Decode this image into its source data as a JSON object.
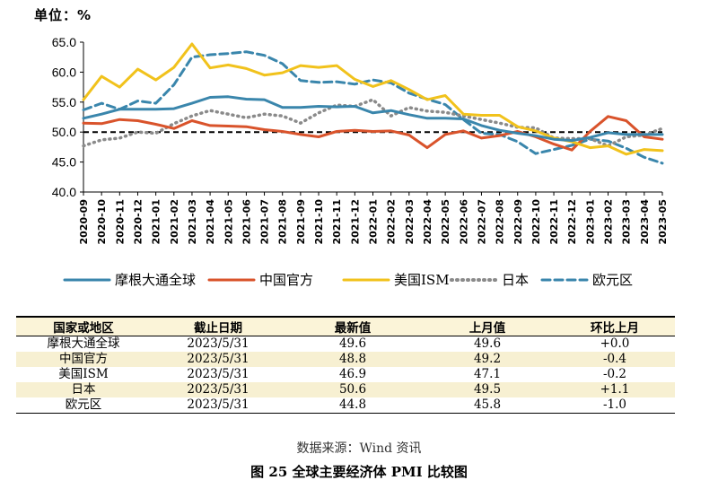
{
  "unit_label": "单位：%",
  "chart_data": {
    "type": "line",
    "x": [
      "2020-09",
      "2020-10",
      "2020-11",
      "2020-12",
      "2021-01",
      "2021-02",
      "2021-03",
      "2021-04",
      "2021-05",
      "2021-06",
      "2021-07",
      "2021-08",
      "2021-09",
      "2021-10",
      "2021-11",
      "2021-12",
      "2022-01",
      "2022-02",
      "2022-03",
      "2022-04",
      "2022-05",
      "2022-06",
      "2022-07",
      "2022-08",
      "2022-09",
      "2022-10",
      "2022-11",
      "2022-12",
      "2023-01",
      "2023-02",
      "2023-03",
      "2023-04",
      "2023-05"
    ],
    "ylim": [
      40,
      65
    ],
    "yticks": [
      "40.0",
      "45.0",
      "50.0",
      "55.0",
      "60.0",
      "65.0"
    ],
    "reference_line": 50,
    "series": [
      {
        "name": "摩根大通全球",
        "color": "#3a86ac",
        "dash": "solid",
        "values": [
          52.3,
          53.0,
          53.8,
          53.8,
          53.8,
          53.9,
          54.8,
          55.8,
          55.9,
          55.5,
          55.4,
          54.1,
          54.1,
          54.3,
          54.2,
          54.3,
          53.2,
          53.6,
          52.9,
          52.3,
          52.3,
          52.2,
          51.1,
          50.3,
          49.8,
          49.4,
          48.8,
          48.6,
          49.1,
          49.9,
          49.6,
          49.6,
          49.6
        ]
      },
      {
        "name": "中国官方",
        "color": "#d9532b",
        "dash": "solid",
        "values": [
          51.5,
          51.4,
          52.1,
          51.9,
          51.3,
          50.6,
          51.9,
          51.1,
          51.0,
          50.9,
          50.4,
          50.1,
          49.6,
          49.2,
          50.1,
          50.3,
          50.1,
          50.2,
          49.5,
          47.4,
          49.6,
          50.2,
          49.0,
          49.4,
          50.1,
          49.2,
          48.0,
          47.0,
          50.1,
          52.6,
          51.9,
          49.2,
          48.8
        ]
      },
      {
        "name": "美国ISM",
        "color": "#f1c21c",
        "dash": "solid",
        "values": [
          55.4,
          59.3,
          57.5,
          60.5,
          58.7,
          60.8,
          64.7,
          60.7,
          61.2,
          60.6,
          59.5,
          59.9,
          61.1,
          60.8,
          61.1,
          58.8,
          57.6,
          58.6,
          57.1,
          55.4,
          56.1,
          53.0,
          52.8,
          52.8,
          50.9,
          50.2,
          49.0,
          48.4,
          47.4,
          47.7,
          46.3,
          47.1,
          46.9
        ]
      },
      {
        "name": "日本",
        "color": "#8a8a8a",
        "dash": "dotted",
        "values": [
          47.7,
          48.7,
          49.0,
          50.0,
          49.8,
          51.4,
          52.7,
          53.6,
          53.0,
          52.4,
          53.0,
          52.7,
          51.5,
          53.2,
          54.5,
          54.3,
          55.4,
          52.7,
          54.1,
          53.5,
          53.3,
          52.7,
          52.1,
          51.5,
          50.8,
          50.7,
          49.0,
          48.9,
          48.9,
          47.7,
          49.2,
          49.5,
          50.6
        ]
      },
      {
        "name": "欧元区",
        "color": "#3a86ac",
        "dash": "dashed",
        "values": [
          53.7,
          54.8,
          53.8,
          55.2,
          54.8,
          57.9,
          62.5,
          62.9,
          63.1,
          63.4,
          62.8,
          61.4,
          58.6,
          58.3,
          58.4,
          58.0,
          58.7,
          58.2,
          56.5,
          55.5,
          54.6,
          52.1,
          49.8,
          49.6,
          48.4,
          46.4,
          47.1,
          47.8,
          48.8,
          48.5,
          47.3,
          45.8,
          44.8
        ]
      }
    ]
  },
  "table": {
    "headers": [
      "国家或地区",
      "截止日期",
      "最新值",
      "上月值",
      "环比上月"
    ],
    "rows": [
      [
        "摩根大通全球",
        "2023/5/31",
        "49.6",
        "49.6",
        "+0.0"
      ],
      [
        "中国官方",
        "2023/5/31",
        "48.8",
        "49.2",
        "-0.4"
      ],
      [
        "美国ISM",
        "2023/5/31",
        "46.9",
        "47.1",
        "-0.2"
      ],
      [
        "日本",
        "2023/5/31",
        "50.6",
        "49.5",
        "+1.1"
      ],
      [
        "欧元区",
        "2023/5/31",
        "44.8",
        "45.8",
        "-1.0"
      ]
    ]
  },
  "source": "数据来源：Wind 资讯",
  "figure_title": "图 25   全球主要经济体 PMI 比较图"
}
